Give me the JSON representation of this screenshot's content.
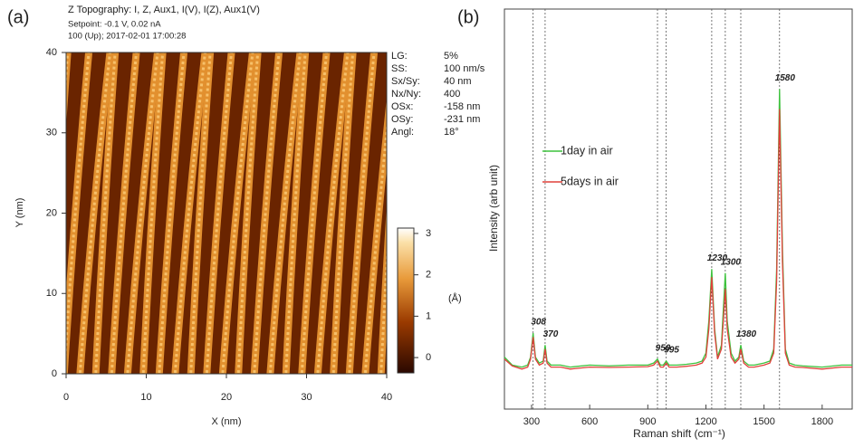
{
  "chart_data": [
    {
      "type": "image",
      "panel_label": "(a)",
      "title": "Z Topography: I, Z, Aux1, I(V), I(Z), Aux1(V)",
      "subtitle": [
        "Setpoint: -0.1 V, 0.02 nA",
        "100 (Up); 2017-02-01 17:00:28"
      ],
      "x_label": "X (nm)",
      "y_label": "Y (nm)",
      "xlim": [
        0,
        40
      ],
      "ylim": [
        0,
        40
      ],
      "xticks": [
        0,
        10,
        20,
        30,
        40
      ],
      "yticks": [
        0,
        10,
        20,
        30,
        40
      ],
      "colorbar": {
        "label": "(Å)",
        "lim": [
          -0.37,
          3.13
        ],
        "ticks": [
          0,
          1,
          2,
          3
        ]
      },
      "parameters": [
        [
          "LG:",
          "5%"
        ],
        [
          "SS:",
          "100 nm/s"
        ],
        [
          "Sx/Sy:",
          "40 nm"
        ],
        [
          "Nx/Ny:",
          "400"
        ],
        [
          "OSx:",
          "-158 nm"
        ],
        [
          "OSy:",
          "-231 nm"
        ],
        [
          "Angl:",
          "18°"
        ]
      ]
    },
    {
      "type": "line",
      "panel_label": "(b)",
      "x_label": "Raman shift (cm⁻¹)",
      "y_label": "Intensity (arb unit)",
      "xlim": [
        160,
        1955
      ],
      "ylim": [
        0,
        1
      ],
      "xticks": [
        300,
        600,
        900,
        1200,
        1500,
        1800
      ],
      "legend": "upper left",
      "peaks": [
        308,
        370,
        950,
        995,
        1230,
        1300,
        1380,
        1580
      ],
      "x": [
        160,
        200,
        250,
        280,
        295,
        308,
        320,
        340,
        360,
        370,
        380,
        400,
        450,
        500,
        600,
        700,
        800,
        900,
        930,
        950,
        965,
        980,
        995,
        1010,
        1050,
        1100,
        1150,
        1180,
        1200,
        1215,
        1230,
        1245,
        1260,
        1280,
        1290,
        1300,
        1310,
        1330,
        1350,
        1370,
        1380,
        1395,
        1420,
        1450,
        1500,
        1530,
        1550,
        1565,
        1580,
        1595,
        1610,
        1630,
        1660,
        1700,
        1800,
        1900,
        1955
      ],
      "series": [
        {
          "name": "1day in air",
          "color": "#3cc23c",
          "values": [
            0.13,
            0.11,
            0.105,
            0.11,
            0.13,
            0.19,
            0.13,
            0.115,
            0.12,
            0.16,
            0.12,
            0.11,
            0.11,
            0.105,
            0.11,
            0.108,
            0.11,
            0.11,
            0.115,
            0.125,
            0.11,
            0.11,
            0.12,
            0.11,
            0.11,
            0.112,
            0.115,
            0.12,
            0.14,
            0.22,
            0.35,
            0.2,
            0.13,
            0.16,
            0.25,
            0.34,
            0.22,
            0.14,
            0.12,
            0.13,
            0.16,
            0.12,
            0.11,
            0.11,
            0.115,
            0.12,
            0.15,
            0.35,
            0.8,
            0.4,
            0.15,
            0.115,
            0.11,
            0.108,
            0.105,
            0.11,
            0.11
          ]
        },
        {
          "name": "5days in air",
          "color": "#e0403a",
          "values": [
            0.125,
            0.108,
            0.1,
            0.105,
            0.125,
            0.18,
            0.125,
            0.11,
            0.115,
            0.15,
            0.115,
            0.105,
            0.105,
            0.1,
            0.105,
            0.104,
            0.105,
            0.106,
            0.11,
            0.12,
            0.105,
            0.105,
            0.115,
            0.105,
            0.105,
            0.107,
            0.11,
            0.115,
            0.13,
            0.2,
            0.33,
            0.19,
            0.125,
            0.15,
            0.22,
            0.3,
            0.2,
            0.13,
            0.115,
            0.125,
            0.15,
            0.115,
            0.105,
            0.105,
            0.11,
            0.115,
            0.14,
            0.32,
            0.75,
            0.37,
            0.14,
            0.11,
            0.105,
            0.104,
            0.1,
            0.105,
            0.105
          ]
        }
      ]
    }
  ]
}
